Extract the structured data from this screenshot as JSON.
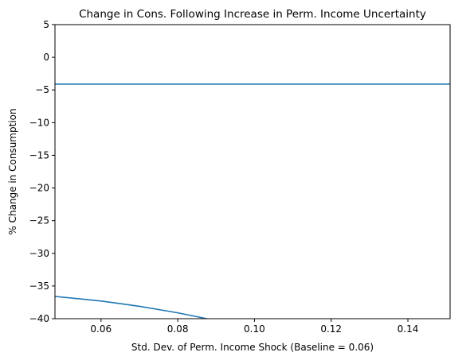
{
  "chart_data": {
    "type": "line",
    "title": "Change in Cons. Following Increase in Perm. Income Uncertainty",
    "xlabel": "Std. Dev. of Perm. Income Shock (Baseline = 0.06)",
    "ylabel": "% Change in Consumption",
    "xlim": [
      0.048,
      0.151
    ],
    "ylim": [
      -40,
      5
    ],
    "xticks": [
      0.06,
      0.08,
      0.1,
      0.12,
      0.14
    ],
    "xtick_labels": [
      "0.06",
      "0.08",
      "0.10",
      "0.12",
      "0.14"
    ],
    "yticks": [
      5,
      0,
      -5,
      -10,
      -15,
      -20,
      -25,
      -30,
      -35,
      -40
    ],
    "ytick_labels": [
      "5",
      "0",
      "−5",
      "−10",
      "−15",
      "−20",
      "−25",
      "−30",
      "−35",
      "−40"
    ],
    "grid": false,
    "legend": "none",
    "line_color": "#1f77b4",
    "series": [
      {
        "x": [
          0.048,
          0.151
        ],
        "values": [
          -4.1,
          -4.1
        ]
      },
      {
        "x": [
          0.048,
          0.055,
          0.06,
          0.065,
          0.07,
          0.075,
          0.08,
          0.085,
          0.09,
          0.095
        ],
        "values": [
          -36.6,
          -37.0,
          -37.3,
          -37.7,
          -38.1,
          -38.6,
          -39.1,
          -39.7,
          -40.3,
          -41.0
        ]
      }
    ]
  }
}
